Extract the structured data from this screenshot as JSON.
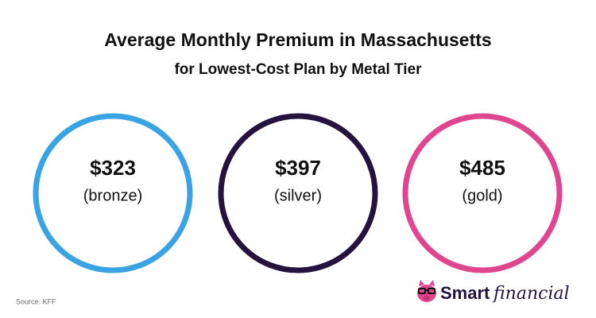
{
  "header": {
    "title": "Average Monthly Premium in Massachusetts",
    "subtitle": "for Lowest-Cost Plan by Metal Tier"
  },
  "items": [
    {
      "value": "$323",
      "label": "(bronze)"
    },
    {
      "value": "$397",
      "label": "(silver)"
    },
    {
      "value": "$485",
      "label": "(gold)"
    }
  ],
  "footer": {
    "source": "Source: KFF",
    "logo_bold": "Smart",
    "logo_script": "financial"
  }
}
